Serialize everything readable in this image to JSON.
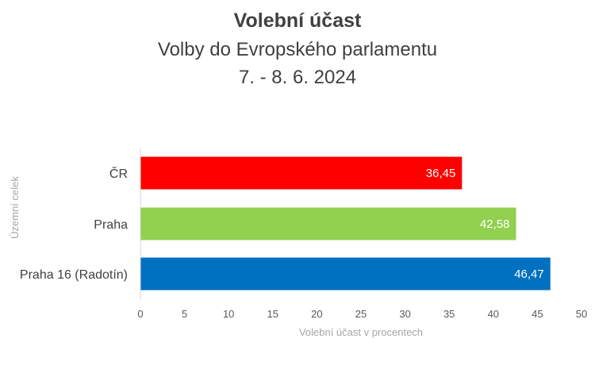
{
  "chart_data": {
    "type": "bar",
    "orientation": "horizontal",
    "title": "Volební účast",
    "subtitle": [
      "Volby do Evropského parlamentu",
      "7. - 8. 6. 2024"
    ],
    "xlabel": "Volební účast v procentech",
    "ylabel": "Územní celek",
    "xlim": [
      0,
      50
    ],
    "xticks": [
      0,
      5,
      10,
      15,
      20,
      25,
      30,
      35,
      40,
      45,
      50
    ],
    "categories": [
      "ČR",
      "Praha",
      "Praha 16 (Radotín)"
    ],
    "values": [
      36.45,
      42.58,
      46.47
    ],
    "value_labels": [
      "36,45",
      "42,58",
      "46,47"
    ],
    "colors": [
      "#ff0000",
      "#92d050",
      "#0070c0"
    ],
    "grid": false,
    "legend": "none"
  }
}
